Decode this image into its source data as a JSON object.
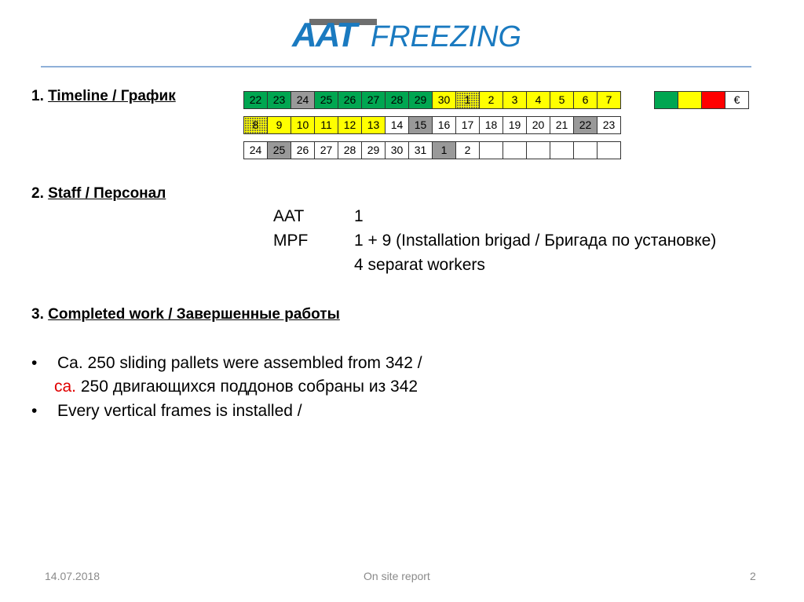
{
  "logo": {
    "text_a": "AAT",
    "text_b": "FREEZING"
  },
  "sections": {
    "timeline": {
      "num": "1. ",
      "title": "Timeline / График"
    },
    "staff": {
      "num": "2. ",
      "title": "Staff / Персонал"
    },
    "completed": {
      "num": "3. ",
      "title": "Completed work / Завершенные работы"
    }
  },
  "timeline_rows": [
    [
      [
        "22",
        "g"
      ],
      [
        "23",
        "g"
      ],
      [
        "24",
        "x"
      ],
      [
        "25",
        "g"
      ],
      [
        "26",
        "g"
      ],
      [
        "27",
        "g"
      ],
      [
        "28",
        "g"
      ],
      [
        "29",
        "g"
      ],
      [
        "30",
        "y"
      ],
      [
        "1",
        "d"
      ],
      [
        "2",
        "y"
      ],
      [
        "3",
        "y"
      ],
      [
        "4",
        "y"
      ],
      [
        "5",
        "y"
      ],
      [
        "6",
        "y"
      ],
      [
        "7",
        "y"
      ]
    ],
    [
      [
        "8",
        "d"
      ],
      [
        "9",
        "y"
      ],
      [
        "10",
        "y"
      ],
      [
        "11",
        "y"
      ],
      [
        "12",
        "y"
      ],
      [
        "13",
        "y"
      ],
      [
        "14",
        "w"
      ],
      [
        "15",
        "x"
      ],
      [
        "16",
        "w"
      ],
      [
        "17",
        "w"
      ],
      [
        "18",
        "w"
      ],
      [
        "19",
        "w"
      ],
      [
        "20",
        "w"
      ],
      [
        "21",
        "w"
      ],
      [
        "22",
        "x"
      ],
      [
        "23",
        "w"
      ]
    ],
    [
      [
        "24",
        "w"
      ],
      [
        "25",
        "x"
      ],
      [
        "26",
        "w"
      ],
      [
        "27",
        "w"
      ],
      [
        "28",
        "w"
      ],
      [
        "29",
        "w"
      ],
      [
        "30",
        "w"
      ],
      [
        "31",
        "w"
      ],
      [
        "1",
        "x"
      ],
      [
        "2",
        "w"
      ],
      [
        "",
        "w"
      ],
      [
        "",
        "w"
      ],
      [
        "",
        "w"
      ],
      [
        "",
        "w"
      ],
      [
        "",
        "w"
      ],
      [
        "",
        "w"
      ]
    ]
  ],
  "legend": [
    {
      "color": "#00a651",
      "label": ""
    },
    {
      "color": "#ffff00",
      "label": ""
    },
    {
      "color": "#ff0000",
      "label": ""
    },
    {
      "color": "#ffffff",
      "label": "€"
    }
  ],
  "staff": [
    {
      "name": "AAT",
      "value": "1"
    },
    {
      "name": "MPF",
      "value": "1 + 9 (Installation brigad / Бригада по установке)"
    },
    {
      "name": "",
      "value": "4 separat workers"
    }
  ],
  "bullets": {
    "b1_en": "Ca. 250 sliding pallets were assembled from 342 /",
    "b1_ru_prefix": "ca.",
    "b1_ru": " 250 двигающихся поддонов собраны из 342",
    "b2": "Every vertical frames is installed /",
    "accent": "#e00000"
  },
  "footer": {
    "date": "14.07.2018",
    "title": "On site report",
    "page": "2"
  }
}
